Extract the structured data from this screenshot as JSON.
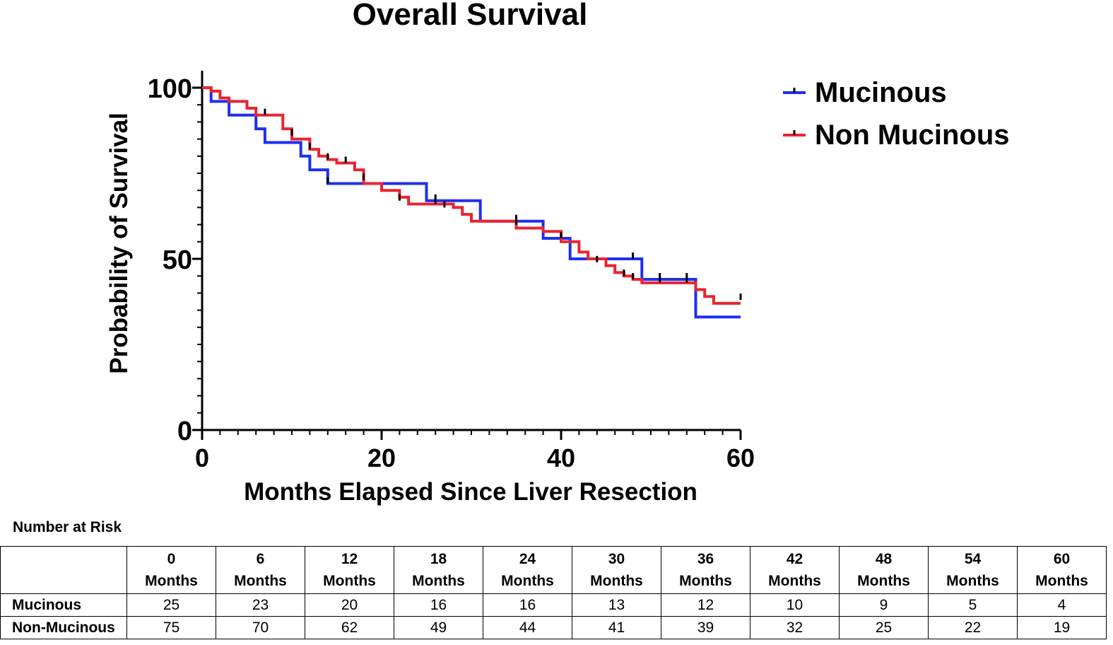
{
  "chart_data": {
    "type": "line",
    "subtype": "kaplan-meier",
    "title": "Overall Survival",
    "xlabel": "Months Elapsed Since Liver Resection",
    "ylabel": "Probability of Survival",
    "xlim": [
      0,
      60
    ],
    "ylim": [
      0,
      100
    ],
    "xticks": [
      0,
      20,
      40,
      60
    ],
    "yticks": [
      0,
      50,
      100
    ],
    "legend_position": "top-right",
    "series": [
      {
        "name": "Mucinous",
        "color": "#1f2ff0",
        "steps": [
          [
            0,
            100
          ],
          [
            1,
            96
          ],
          [
            3,
            92
          ],
          [
            6,
            88
          ],
          [
            7,
            84
          ],
          [
            11,
            80
          ],
          [
            12,
            76
          ],
          [
            14,
            72
          ],
          [
            25,
            72
          ],
          [
            25,
            67
          ],
          [
            31,
            67
          ],
          [
            31,
            61
          ],
          [
            38,
            61
          ],
          [
            38,
            56
          ],
          [
            41,
            56
          ],
          [
            41,
            50
          ],
          [
            49,
            50
          ],
          [
            49,
            44
          ],
          [
            55,
            44
          ],
          [
            55,
            33
          ],
          [
            60,
            33
          ]
        ],
        "censored": [
          [
            14,
            72
          ],
          [
            26,
            67
          ],
          [
            35,
            61
          ],
          [
            48,
            50
          ],
          [
            51,
            44
          ],
          [
            54,
            44
          ]
        ]
      },
      {
        "name": "Non Mucinous",
        "color": "#e82530",
        "steps": [
          [
            0,
            100
          ],
          [
            1,
            99
          ],
          [
            2,
            97
          ],
          [
            3,
            96
          ],
          [
            5,
            96
          ],
          [
            5,
            94
          ],
          [
            6,
            92
          ],
          [
            9,
            92
          ],
          [
            9,
            88
          ],
          [
            10,
            85
          ],
          [
            12,
            82
          ],
          [
            13,
            80
          ],
          [
            14,
            79
          ],
          [
            15,
            78
          ],
          [
            17,
            76
          ],
          [
            18,
            74
          ],
          [
            18,
            72
          ],
          [
            20,
            70
          ],
          [
            22,
            68
          ],
          [
            23,
            66
          ],
          [
            28,
            66
          ],
          [
            28,
            65
          ],
          [
            29,
            63
          ],
          [
            30,
            61
          ],
          [
            35,
            61
          ],
          [
            35,
            59
          ],
          [
            38,
            59
          ],
          [
            38,
            58
          ],
          [
            40,
            58
          ],
          [
            40,
            55
          ],
          [
            42,
            55
          ],
          [
            42,
            52
          ],
          [
            43,
            50
          ],
          [
            45,
            48
          ],
          [
            46,
            46
          ],
          [
            47,
            45
          ],
          [
            48,
            44
          ],
          [
            49,
            43
          ],
          [
            55,
            43
          ],
          [
            55,
            41
          ],
          [
            56,
            39
          ],
          [
            57,
            37
          ],
          [
            60,
            37
          ]
        ],
        "censored": [
          [
            7,
            92
          ],
          [
            10,
            86
          ],
          [
            12,
            82
          ],
          [
            14,
            79
          ],
          [
            16,
            78
          ],
          [
            18,
            73
          ],
          [
            22,
            67
          ],
          [
            26,
            66
          ],
          [
            27,
            65
          ],
          [
            35,
            60
          ],
          [
            40,
            56
          ],
          [
            44,
            49
          ],
          [
            47,
            45
          ],
          [
            48,
            44
          ],
          [
            51,
            43
          ],
          [
            54,
            43
          ],
          [
            60,
            38
          ]
        ]
      }
    ]
  },
  "risk_table": {
    "title": "Number at Risk",
    "columns": [
      {
        "num": "0",
        "unit": "Months"
      },
      {
        "num": "6",
        "unit": "Months"
      },
      {
        "num": "12",
        "unit": "Months"
      },
      {
        "num": "18",
        "unit": "Months"
      },
      {
        "num": "24",
        "unit": "Months"
      },
      {
        "num": "30",
        "unit": "Months"
      },
      {
        "num": "36",
        "unit": "Months"
      },
      {
        "num": "42",
        "unit": "Months"
      },
      {
        "num": "48",
        "unit": "Months"
      },
      {
        "num": "54",
        "unit": "Months"
      },
      {
        "num": "60",
        "unit": "Months"
      }
    ],
    "rows": [
      {
        "label": "Mucinous",
        "values": [
          "25",
          "23",
          "20",
          "16",
          "16",
          "13",
          "12",
          "10",
          "9",
          "5",
          "4"
        ]
      },
      {
        "label": "Non-Mucinous",
        "values": [
          "75",
          "70",
          "62",
          "49",
          "44",
          "41",
          "39",
          "32",
          "25",
          "22",
          "19"
        ]
      }
    ]
  }
}
